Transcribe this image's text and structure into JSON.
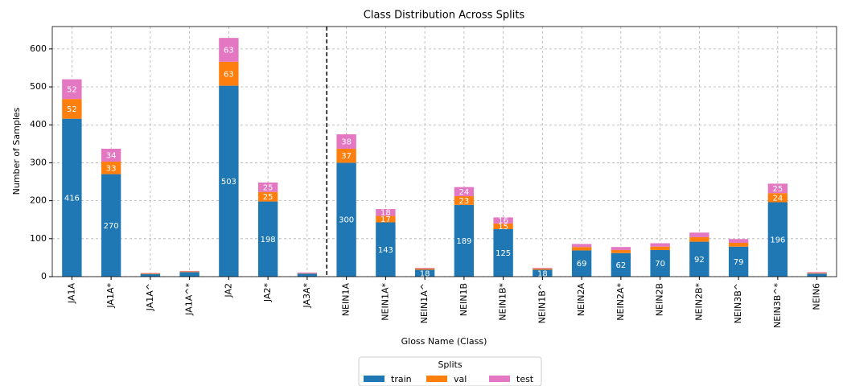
{
  "chart_data": {
    "type": "stacked_bar",
    "title": "Class Distribution Across Splits",
    "xlabel": "Gloss Name (Class)",
    "ylabel": "Number of Samples",
    "categories": [
      "JA1A",
      "JA1A*",
      "JA1A^",
      "JA1A^*",
      "JA2",
      "JA2*",
      "JA3A*",
      "NEIN1A",
      "NEIN1A*",
      "NEIN1A^",
      "NEIN1B",
      "NEIN1B*",
      "NEIN1B^",
      "NEIN2A",
      "NEIN2A*",
      "NEIN2B",
      "NEIN2B*",
      "NEIN3B^",
      "NEIN3B^*",
      "NEIN6"
    ],
    "series": [
      {
        "name": "train",
        "color": "#1f77b4",
        "values": [
          416,
          270,
          7,
          12,
          503,
          198,
          8,
          300,
          143,
          18,
          189,
          125,
          18,
          69,
          62,
          70,
          92,
          79,
          196,
          8
        ]
      },
      {
        "name": "val",
        "color": "#ff7f0e",
        "values": [
          52,
          33,
          2,
          2,
          63,
          25,
          1,
          37,
          17,
          3,
          23,
          15,
          3,
          9,
          8,
          9,
          12,
          10,
          24,
          2
        ]
      },
      {
        "name": "test",
        "color": "#e377c2",
        "values": [
          52,
          34,
          1,
          1,
          63,
          25,
          2,
          38,
          18,
          2,
          24,
          16,
          2,
          8,
          8,
          9,
          12,
          10,
          25,
          2
        ]
      }
    ],
    "ylim": [
      0,
      659
    ],
    "yticks": [
      0,
      100,
      200,
      300,
      400,
      500,
      600
    ],
    "grid": true,
    "legend_title": "Splits",
    "legend_position": "bottom"
  }
}
